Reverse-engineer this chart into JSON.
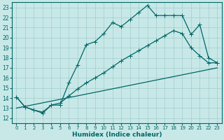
{
  "xlabel": "Humidex (Indice chaleur)",
  "xlim": [
    -0.5,
    23.5
  ],
  "ylim": [
    11.5,
    23.5
  ],
  "bg_color": "#c8e8e8",
  "line_color": "#006666",
  "grid_color": "#a0cccc",
  "xticks": [
    0,
    1,
    2,
    3,
    4,
    5,
    6,
    7,
    8,
    9,
    10,
    11,
    12,
    13,
    14,
    15,
    16,
    17,
    18,
    19,
    20,
    21,
    22,
    23
  ],
  "yticks": [
    12,
    13,
    14,
    15,
    16,
    17,
    18,
    19,
    20,
    21,
    22,
    23
  ],
  "curve1_x": [
    0,
    1,
    2,
    3,
    4,
    5,
    6,
    7,
    8,
    9,
    10,
    11,
    12,
    13,
    14,
    15,
    16,
    17,
    18,
    19,
    20,
    21,
    22,
    23
  ],
  "curve1_y": [
    14.1,
    13.1,
    12.8,
    12.5,
    13.3,
    13.3,
    15.5,
    17.3,
    19.3,
    19.6,
    20.4,
    21.5,
    21.1,
    21.8,
    22.5,
    23.2,
    22.2,
    22.2,
    22.2,
    22.2,
    20.3,
    21.3,
    18.0,
    17.5
  ],
  "curve2_x": [
    0,
    1,
    2,
    3,
    4,
    5,
    6,
    7,
    8,
    9,
    10,
    11,
    12,
    13,
    14,
    15,
    16,
    17,
    18,
    19,
    20,
    21,
    22,
    23
  ],
  "curve2_y": [
    14.1,
    13.1,
    12.8,
    12.6,
    13.3,
    13.5,
    14.2,
    14.9,
    15.5,
    16.0,
    16.5,
    17.1,
    17.7,
    18.2,
    18.7,
    19.2,
    19.7,
    20.2,
    20.7,
    20.4,
    19.0,
    18.2,
    17.5,
    17.5
  ],
  "curve3_x": [
    0,
    23
  ],
  "curve3_y": [
    13.0,
    17.0
  ]
}
